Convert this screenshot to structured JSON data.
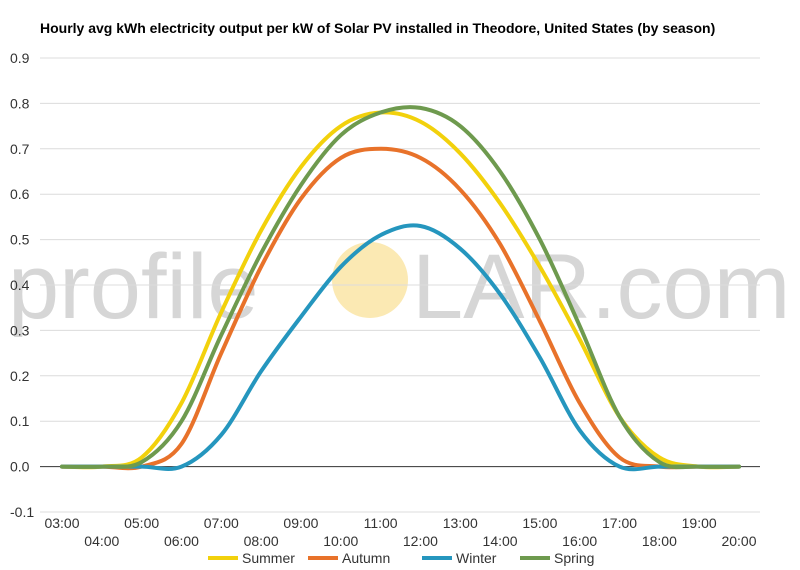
{
  "chart_data": {
    "type": "line",
    "title": "Hourly avg kWh electricity output per kW of Solar PV installed in Theodore, United States (by season)",
    "xlabel": "",
    "ylabel": "",
    "x": [
      "03:00",
      "04:00",
      "05:00",
      "06:00",
      "07:00",
      "08:00",
      "09:00",
      "10:00",
      "11:00",
      "12:00",
      "13:00",
      "14:00",
      "15:00",
      "16:00",
      "17:00",
      "18:00",
      "19:00",
      "20:00"
    ],
    "ylim": [
      -0.1,
      0.9
    ],
    "yticks": [
      "0.9",
      "0.8",
      "0.7",
      "0.6",
      "0.5",
      "0.4",
      "0.3",
      "0.2",
      "0.1",
      "0.0",
      "-0.1"
    ],
    "ytick_values": [
      0.9,
      0.8,
      0.7,
      0.6,
      0.5,
      0.4,
      0.3,
      0.2,
      0.1,
      0.0,
      -0.1
    ],
    "grid": true,
    "legend_position": "bottom",
    "series": [
      {
        "name": "Summer",
        "color": "#f2d10c",
        "values": [
          0.0,
          0.0,
          0.02,
          0.14,
          0.34,
          0.52,
          0.66,
          0.75,
          0.78,
          0.76,
          0.69,
          0.58,
          0.44,
          0.28,
          0.11,
          0.02,
          0.0,
          0.0
        ]
      },
      {
        "name": "Autumn",
        "color": "#e8722a",
        "values": [
          0.0,
          0.0,
          0.0,
          0.05,
          0.25,
          0.44,
          0.59,
          0.68,
          0.7,
          0.68,
          0.61,
          0.49,
          0.32,
          0.14,
          0.02,
          0.0,
          0.0,
          0.0
        ]
      },
      {
        "name": "Winter",
        "color": "#2596be",
        "values": [
          0.0,
          0.0,
          0.0,
          0.0,
          0.07,
          0.21,
          0.33,
          0.44,
          0.51,
          0.53,
          0.48,
          0.38,
          0.24,
          0.08,
          0.0,
          0.0,
          0.0,
          0.0
        ]
      },
      {
        "name": "Spring",
        "color": "#6e9a4e",
        "values": [
          0.0,
          0.0,
          0.01,
          0.1,
          0.29,
          0.47,
          0.62,
          0.73,
          0.78,
          0.79,
          0.75,
          0.65,
          0.5,
          0.31,
          0.11,
          0.01,
          0.0,
          0.0
        ]
      }
    ]
  },
  "watermark": {
    "left": "profile",
    "right": "LAR.com",
    "sun_color": "#fbe9b3"
  }
}
